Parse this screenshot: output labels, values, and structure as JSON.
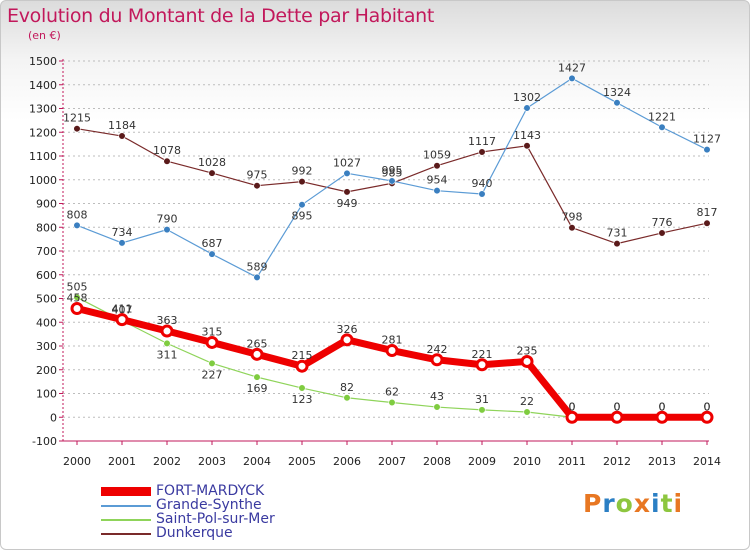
{
  "header": {
    "title": "Evolution du Montant de la Dette par Habitant",
    "unit": "(en €)"
  },
  "logo": {
    "letters": [
      "P",
      "r",
      "o",
      "x",
      "i",
      "t",
      "i"
    ],
    "colors": [
      "#e87722",
      "#2b7fc4",
      "#8dc63f",
      "#e87722",
      "#2b7fc4",
      "#8dc63f",
      "#e87722"
    ]
  },
  "chart_data": {
    "type": "line",
    "x": [
      2000,
      2001,
      2002,
      2003,
      2004,
      2005,
      2006,
      2007,
      2008,
      2009,
      2010,
      2011,
      2012,
      2013,
      2014
    ],
    "ylim": [
      -100,
      1500
    ],
    "yticks": [
      -100,
      0,
      100,
      200,
      300,
      400,
      500,
      600,
      700,
      800,
      900,
      1000,
      1100,
      1200,
      1300,
      1400,
      1500
    ],
    "title": "Evolution du Montant de la Dette par Habitant",
    "ylabel": "(en €)",
    "grid": "horizontal dashed",
    "legend": "bottom",
    "series": [
      {
        "name": "Dunkerque",
        "color": "#7a2a2a",
        "values": [
          1215,
          1184,
          1078,
          1028,
          975,
          992,
          949,
          985,
          1059,
          1117,
          1143,
          798,
          731,
          776,
          817
        ],
        "labels_above": [
          true,
          true,
          true,
          true,
          true,
          true,
          false,
          true,
          true,
          true,
          true,
          true,
          true,
          true,
          true
        ]
      },
      {
        "name": "Grande-Synthe",
        "color": "#5b9bd5",
        "values": [
          808,
          734,
          790,
          687,
          589,
          895,
          1027,
          995,
          954,
          940,
          1302,
          1427,
          1324,
          1221,
          1127
        ],
        "labels_above": [
          true,
          true,
          true,
          true,
          true,
          false,
          true,
          true,
          true,
          true,
          true,
          true,
          true,
          true,
          true
        ]
      },
      {
        "name": "Saint-Pol-sur-Mer",
        "color": "#8fd45a",
        "values": [
          505,
          407,
          311,
          227,
          169,
          123,
          82,
          62,
          43,
          31,
          22,
          0,
          0,
          0,
          0
        ],
        "labels_above": [
          true,
          true,
          false,
          false,
          false,
          false,
          true,
          true,
          true,
          true,
          true,
          true,
          true,
          true,
          true
        ]
      },
      {
        "name": "FORT-MARDYCK",
        "color": "#ee0000",
        "values": [
          458,
          411,
          363,
          315,
          265,
          215,
          326,
          281,
          242,
          221,
          235,
          0,
          0,
          0,
          0
        ],
        "labels_above": [
          true,
          true,
          true,
          true,
          true,
          true,
          true,
          true,
          true,
          true,
          true,
          true,
          true,
          true,
          true
        ]
      }
    ]
  }
}
